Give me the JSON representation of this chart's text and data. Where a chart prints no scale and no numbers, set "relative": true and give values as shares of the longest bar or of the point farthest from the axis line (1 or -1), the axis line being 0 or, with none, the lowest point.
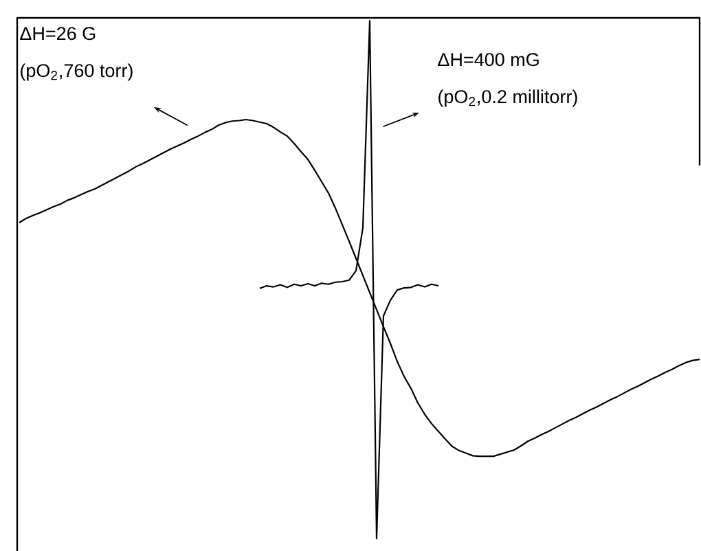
{
  "chart_data": {
    "type": "line",
    "relative": true,
    "categories": [
      null,
      null,
      null,
      null,
      null,
      null,
      null,
      null,
      null,
      null,
      null,
      null,
      null,
      null,
      null,
      null,
      null,
      null,
      null,
      null,
      null,
      null,
      null,
      null,
      null,
      null,
      null,
      null,
      null,
      null,
      null,
      null,
      null,
      null,
      null,
      null,
      null,
      null,
      null,
      null,
      null,
      null,
      null,
      null,
      null,
      null,
      null,
      null,
      null,
      null,
      null,
      null,
      null,
      null,
      null,
      null,
      null,
      null,
      null,
      null,
      null,
      null,
      null,
      null,
      null,
      null,
      null,
      null,
      null,
      null,
      null,
      null,
      null,
      null,
      null,
      null,
      null,
      null,
      null,
      null,
      null,
      null,
      null,
      null,
      null,
      null,
      null,
      null,
      null,
      null,
      null,
      null,
      null,
      null,
      null,
      null,
      null,
      null,
      null,
      null
    ],
    "series": [
      {
        "color": "#000000",
        "values": [
          0.61,
          0.618,
          0.624,
          0.629,
          0.635,
          0.641,
          0.646,
          0.653,
          0.658,
          0.664,
          0.67,
          0.675,
          0.682,
          0.689,
          0.696,
          0.703,
          0.71,
          0.718,
          0.724,
          0.731,
          0.738,
          0.745,
          0.752,
          0.758,
          0.764,
          0.771,
          0.777,
          0.784,
          0.79,
          0.798,
          0.803,
          0.806,
          0.807,
          0.809,
          0.807,
          0.804,
          0.801,
          0.794,
          0.785,
          0.777,
          0.763,
          0.747,
          0.732,
          0.711,
          0.689,
          0.667,
          0.638,
          0.606,
          0.574,
          0.541,
          0.508,
          0.475,
          0.442,
          0.409,
          0.377,
          0.342,
          0.313,
          0.29,
          0.262,
          0.24,
          0.222,
          0.207,
          0.192,
          0.178,
          0.17,
          0.165,
          0.16,
          0.159,
          0.159,
          0.159,
          0.163,
          0.167,
          0.171,
          0.179,
          0.188,
          0.194,
          0.201,
          0.207,
          0.214,
          0.221,
          0.228,
          0.234,
          0.241,
          0.248,
          0.254,
          0.261,
          0.268,
          0.274,
          0.281,
          0.288,
          0.294,
          0.301,
          0.308,
          0.314,
          0.321,
          0.327,
          0.334,
          0.34,
          0.344,
          0.346
        ]
      },
      {
        "color": "#000000",
        "values": [
          null,
          null,
          null,
          null,
          null,
          null,
          null,
          null,
          null,
          null,
          null,
          null,
          null,
          null,
          null,
          null,
          null,
          null,
          null,
          null,
          null,
          null,
          null,
          null,
          null,
          null,
          null,
          null,
          null,
          null,
          null,
          null,
          null,
          null,
          null,
          0.483,
          0.488,
          0.486,
          0.49,
          0.485,
          0.491,
          0.488,
          0.492,
          0.488,
          0.493,
          0.491,
          0.495,
          0.496,
          0.499,
          0.517,
          0.6,
          1,
          0,
          0.43,
          0.46,
          0.48,
          0.484,
          0.485,
          0.49,
          0.486,
          0.491,
          0.488,
          null,
          null,
          null,
          null,
          null,
          null,
          null,
          null,
          null,
          null,
          null,
          null,
          null,
          null,
          null,
          null,
          null,
          null,
          null,
          null,
          null,
          null,
          null,
          null,
          null,
          null,
          null,
          null,
          null,
          null,
          null,
          null,
          null,
          null,
          null,
          null,
          null,
          null
        ]
      }
    ],
    "annotations": [
      "ΔH=26 G",
      "(pO$_{2}$,760 torr)",
      "ΔH=400 mG",
      "(pO$_{2}$,0.2 millitorr)"
    ]
  }
}
